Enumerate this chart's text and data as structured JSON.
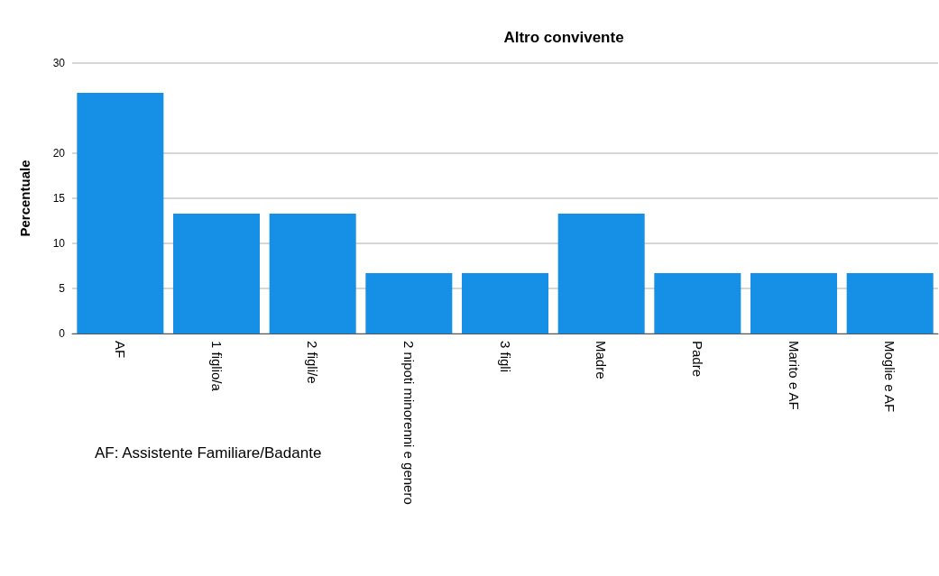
{
  "chart_data": {
    "type": "bar",
    "title": "Altro convivente",
    "ylabel": "Percentuale",
    "categories": [
      "AF",
      "1 figlio/a",
      "2 figli/e",
      "2 nipoti minorenni e genero",
      "3 figli",
      "Madre",
      "Padre",
      "Marito e AF",
      "Moglie e AF"
    ],
    "values": [
      26.7,
      13.3,
      13.3,
      6.7,
      6.7,
      13.3,
      6.7,
      6.7,
      6.7
    ],
    "color": "#1590e6",
    "ylim": [
      0,
      30
    ],
    "yticks": [
      0,
      5,
      10,
      15,
      20,
      30
    ],
    "grid": "y",
    "annotations": [
      "AF: Assistente Familiare/Badante"
    ]
  }
}
